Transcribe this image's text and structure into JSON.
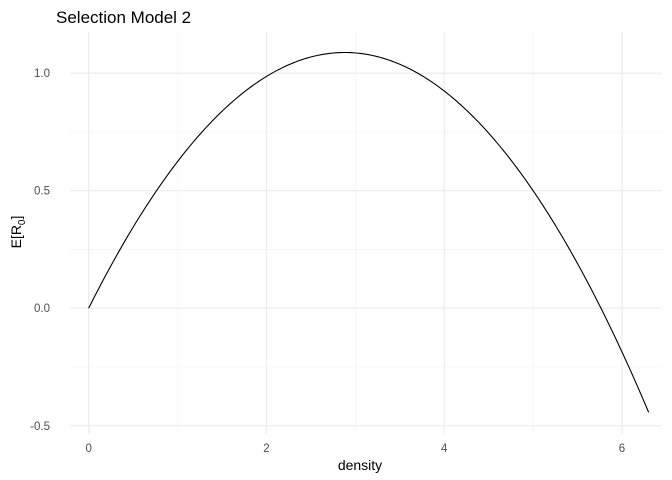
{
  "chart_data": {
    "type": "line",
    "title": "Selection Model 2",
    "xlabel": "density",
    "ylabel_main": "E[R",
    "ylabel_subscript": "0",
    "ylabel_close": "]",
    "xlim": [
      -0.21,
      6.45
    ],
    "ylim": [
      -0.535,
      1.175
    ],
    "x_ticks": [
      0,
      2,
      4,
      6
    ],
    "x_tick_labels": [
      "0",
      "2",
      "4",
      "6"
    ],
    "x_minor": [
      1,
      3,
      5
    ],
    "y_ticks": [
      -0.5,
      0.0,
      0.5,
      1.0
    ],
    "y_tick_labels": [
      "-0.5",
      "0.0",
      "0.5",
      "1.0"
    ],
    "y_minor": [
      -0.25,
      0.25,
      0.75
    ],
    "curve": {
      "form": "a*x - b*x^2",
      "a": 0.755,
      "b": 0.131,
      "x_start": 0,
      "x_end": 6.3
    },
    "series": [
      {
        "name": "E[R0]",
        "color": "#000000",
        "x": [
          0,
          0.5,
          1,
          1.5,
          2,
          2.5,
          2.88,
          3,
          3.5,
          4,
          4.5,
          5,
          5.5,
          6,
          6.3
        ],
        "y": [
          0.0,
          0.345,
          0.624,
          0.838,
          0.986,
          1.069,
          1.088,
          1.086,
          1.038,
          0.924,
          0.745,
          0.5,
          0.19,
          -0.186,
          -0.44
        ]
      }
    ],
    "grid": true
  }
}
